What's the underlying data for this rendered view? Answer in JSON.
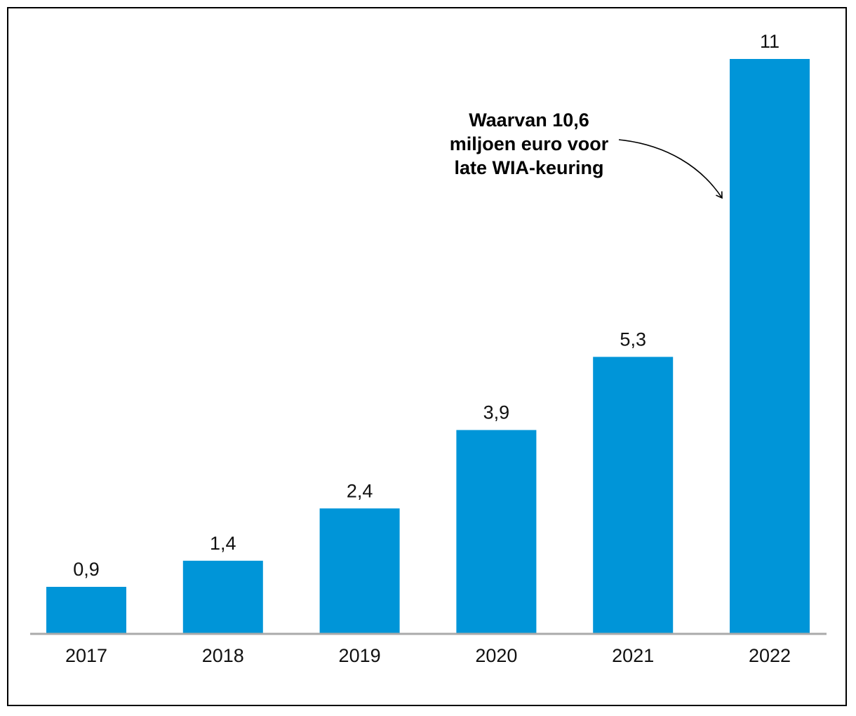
{
  "chart_data": {
    "type": "bar",
    "categories": [
      "2017",
      "2018",
      "2019",
      "2020",
      "2021",
      "2022"
    ],
    "values": [
      0.9,
      1.4,
      2.4,
      3.9,
      5.3,
      11
    ],
    "value_labels": [
      "0,9",
      "1,4",
      "2,4",
      "3,9",
      "5,3",
      "11"
    ],
    "title": "",
    "xlabel": "",
    "ylabel": "",
    "ylim": [
      0,
      11
    ],
    "grid": false,
    "bar_color": "#0095D8",
    "axis_color": "#AAAAAA",
    "annotation": {
      "lines": [
        "Waarvan 10,6",
        "miljoen euro voor",
        "late WIA-keuring"
      ],
      "target_category": "2022"
    }
  }
}
